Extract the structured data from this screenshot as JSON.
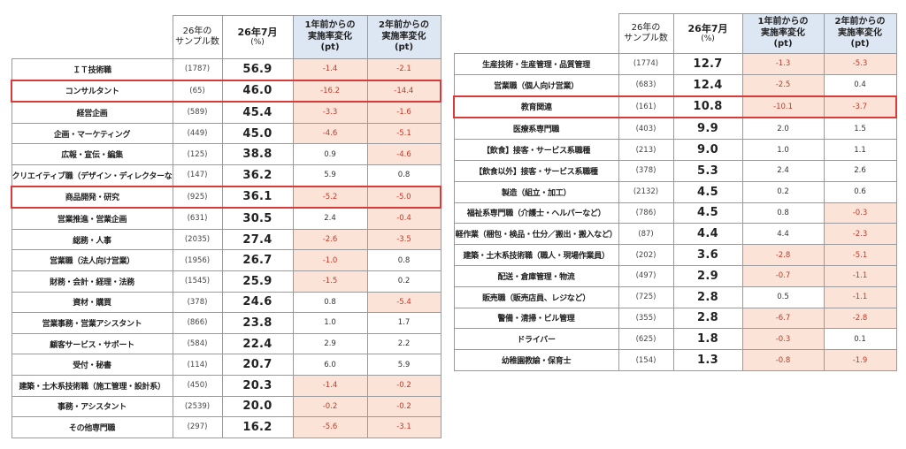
{
  "headers": {
    "sample_line1": "26年の",
    "sample_line2": "サンプル数",
    "rate_line1": "26年7月",
    "rate_unit": "(%)",
    "delta1_line1": "1年前からの",
    "delta1_line2": "実施率変化",
    "delta1_unit": "(pt)",
    "delta2_line1": "2年前からの",
    "delta2_line2": "実施率変化",
    "delta2_unit": "(pt)"
  },
  "colors": {
    "negative_bg": "#fbe4d7",
    "negative_text": "#c0392b",
    "header_highlight": "#dde6f3",
    "row_highlight_border": "#d93a3a"
  },
  "left_table": {
    "rows": [
      {
        "name": "ＩＴ技術職",
        "sample": "(1787)",
        "rate": "56.9",
        "d1": "-1.4",
        "d2": "-2.1",
        "highlight": false
      },
      {
        "name": "コンサルタント",
        "sample": "(65)",
        "rate": "46.0",
        "d1": "-16.2",
        "d2": "-14.4",
        "highlight": true
      },
      {
        "name": "経営企画",
        "sample": "(589)",
        "rate": "45.4",
        "d1": "-3.3",
        "d2": "-1.6",
        "highlight": false
      },
      {
        "name": "企画・マーケティング",
        "sample": "(449)",
        "rate": "45.0",
        "d1": "-4.6",
        "d2": "-5.1",
        "highlight": false
      },
      {
        "name": "広報・宣伝・編集",
        "sample": "(125)",
        "rate": "38.8",
        "d1": "0.9",
        "d2": "-4.6",
        "highlight": false
      },
      {
        "name": "クリエイティブ職（デザイン・ディレクターなど）",
        "sample": "(147)",
        "rate": "36.2",
        "d1": "5.9",
        "d2": "0.8",
        "highlight": false
      },
      {
        "name": "商品開発・研究",
        "sample": "(925)",
        "rate": "36.1",
        "d1": "-5.2",
        "d2": "-5.0",
        "highlight": true
      },
      {
        "name": "営業推進・営業企画",
        "sample": "(631)",
        "rate": "30.5",
        "d1": "2.4",
        "d2": "-0.4",
        "highlight": false
      },
      {
        "name": "総務・人事",
        "sample": "(2035)",
        "rate": "27.4",
        "d1": "-2.6",
        "d2": "-3.5",
        "highlight": false
      },
      {
        "name": "営業職（法人向け営業）",
        "sample": "(1956)",
        "rate": "26.7",
        "d1": "-1.0",
        "d2": "0.8",
        "highlight": false
      },
      {
        "name": "財務・会計・経理・法務",
        "sample": "(1545)",
        "rate": "25.9",
        "d1": "-1.5",
        "d2": "0.2",
        "highlight": false
      },
      {
        "name": "資材・購買",
        "sample": "(378)",
        "rate": "24.6",
        "d1": "0.8",
        "d2": "-5.4",
        "highlight": false
      },
      {
        "name": "営業事務・営業アシスタント",
        "sample": "(866)",
        "rate": "23.8",
        "d1": "1.0",
        "d2": "1.7",
        "highlight": false
      },
      {
        "name": "顧客サービス・サポート",
        "sample": "(584)",
        "rate": "22.4",
        "d1": "2.9",
        "d2": "2.2",
        "highlight": false
      },
      {
        "name": "受付・秘書",
        "sample": "(114)",
        "rate": "20.7",
        "d1": "6.0",
        "d2": "5.9",
        "highlight": false
      },
      {
        "name": "建築・土木系技術職（施工管理・設計系）",
        "sample": "(450)",
        "rate": "20.3",
        "d1": "-1.4",
        "d2": "-0.2",
        "highlight": false
      },
      {
        "name": "事務・アシスタント",
        "sample": "(2539)",
        "rate": "20.0",
        "d1": "-0.2",
        "d2": "-0.2",
        "highlight": false
      },
      {
        "name": "その他専門職",
        "sample": "(297)",
        "rate": "16.2",
        "d1": "-5.6",
        "d2": "-3.1",
        "highlight": false
      }
    ]
  },
  "right_table": {
    "rows": [
      {
        "name": "生産技術・生産管理・品質管理",
        "sample": "(1774)",
        "rate": "12.7",
        "d1": "-1.3",
        "d2": "-5.3",
        "highlight": false
      },
      {
        "name": "営業職（個人向け営業）",
        "sample": "(683)",
        "rate": "12.4",
        "d1": "-2.5",
        "d2": "0.4",
        "highlight": false
      },
      {
        "name": "教育関連",
        "sample": "(161)",
        "rate": "10.8",
        "d1": "-10.1",
        "d2": "-3.7",
        "highlight": true
      },
      {
        "name": "医療系専門職",
        "sample": "(403)",
        "rate": "9.9",
        "d1": "2.0",
        "d2": "1.5",
        "highlight": false
      },
      {
        "name": "【飲食】接客・サービス系職種",
        "sample": "(213)",
        "rate": "9.0",
        "d1": "1.0",
        "d2": "1.1",
        "highlight": false
      },
      {
        "name": "【飲食以外】接客・サービス系職種",
        "sample": "(378)",
        "rate": "5.3",
        "d1": "2.4",
        "d2": "2.6",
        "highlight": false
      },
      {
        "name": "製造（組立・加工）",
        "sample": "(2132)",
        "rate": "4.5",
        "d1": "0.2",
        "d2": "0.6",
        "highlight": false
      },
      {
        "name": "福祉系専門職（介護士・ヘルパーなど）",
        "sample": "(786)",
        "rate": "4.5",
        "d1": "0.8",
        "d2": "-0.3",
        "highlight": false
      },
      {
        "name": "軽作業（梱包・検品・仕分／搬出・搬入など）",
        "sample": "(87)",
        "rate": "4.4",
        "d1": "4.4",
        "d2": "-2.3",
        "highlight": false
      },
      {
        "name": "建築・土木系技術職（職人・現場作業員）",
        "sample": "(202)",
        "rate": "3.6",
        "d1": "-2.8",
        "d2": "-5.1",
        "highlight": false
      },
      {
        "name": "配送・倉庫管理・物流",
        "sample": "(497)",
        "rate": "2.9",
        "d1": "-0.7",
        "d2": "-1.1",
        "highlight": false
      },
      {
        "name": "販売職（販売店員、レジなど）",
        "sample": "(725)",
        "rate": "2.8",
        "d1": "0.5",
        "d2": "-1.1",
        "highlight": false
      },
      {
        "name": "警備・清掃・ビル管理",
        "sample": "(355)",
        "rate": "2.8",
        "d1": "-6.7",
        "d2": "-2.8",
        "highlight": false
      },
      {
        "name": "ドライバー",
        "sample": "(625)",
        "rate": "1.8",
        "d1": "-0.3",
        "d2": "0.1",
        "highlight": false
      },
      {
        "name": "幼稚園教諭・保育士",
        "sample": "(154)",
        "rate": "1.3",
        "d1": "-0.8",
        "d2": "-1.9",
        "highlight": false
      }
    ]
  }
}
